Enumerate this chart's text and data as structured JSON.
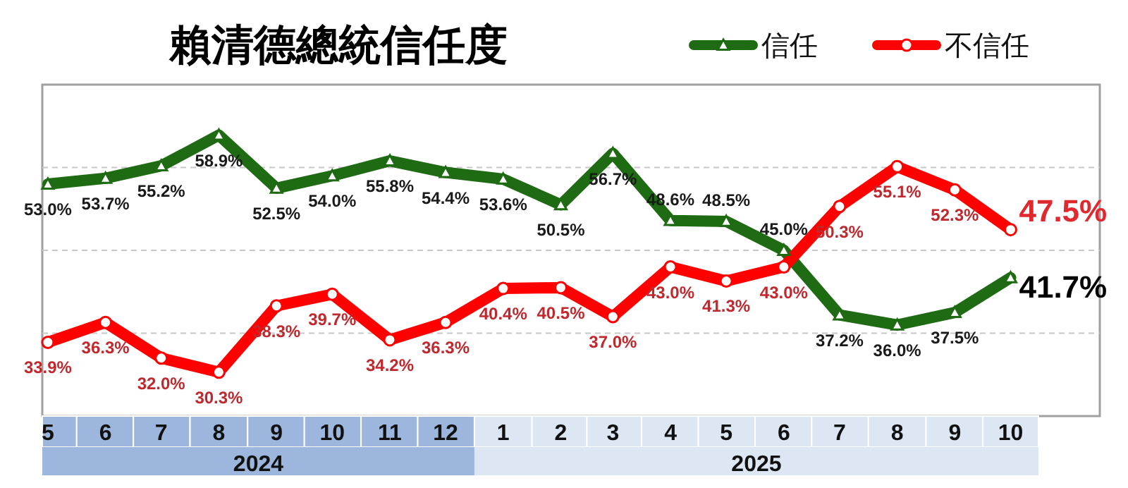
{
  "chart_data": {
    "type": "line",
    "title": "賴清德總統信任度",
    "x": [
      "2024-05",
      "2024-06",
      "2024-07",
      "2024-08",
      "2024-09",
      "2024-10",
      "2024-11",
      "2024-12",
      "2025-01",
      "2025-02",
      "2025-03",
      "2025-04",
      "2025-05",
      "2025-06",
      "2025-07",
      "2025-08",
      "2025-09",
      "2025-10"
    ],
    "xlim": [
      "2024-04-28",
      "2025-11-18"
    ],
    "annotations": [
      "2024",
      "2025"
    ],
    "xticks": [
      {
        "value": "2024-05",
        "label": "5"
      },
      {
        "value": "2024-06",
        "label": "6"
      },
      {
        "value": "2024-07",
        "label": "7"
      },
      {
        "value": "2024-08",
        "label": "8"
      },
      {
        "value": "2024-09",
        "label": "9"
      },
      {
        "value": "2024-10",
        "label": "10"
      },
      {
        "value": "2024-11",
        "label": "11"
      },
      {
        "value": "2024-12",
        "label": "12"
      },
      {
        "value": "2025-01",
        "label": "1"
      },
      {
        "value": "2025-02",
        "label": "2"
      },
      {
        "value": "2025-03",
        "label": "3"
      },
      {
        "value": "2025-04",
        "label": "4"
      },
      {
        "value": "2025-05",
        "label": "5"
      },
      {
        "value": "2025-06",
        "label": "6"
      },
      {
        "value": "2025-07",
        "label": "7"
      },
      {
        "value": "2025-08",
        "label": "8"
      },
      {
        "value": "2025-09",
        "label": "9"
      },
      {
        "value": "2025-10",
        "label": "10"
      }
    ],
    "ylim": [
      25,
      65
    ],
    "yticks": [
      {
        "value": 35,
        "label": null
      },
      {
        "value": 45,
        "label": null
      },
      {
        "value": 55,
        "label": null
      }
    ],
    "tick_labels": "x",
    "grid": "y",
    "legend": "top right",
    "line_style": "solid",
    "series": [
      {
        "name": "信任",
        "color": "#1f6b14",
        "marker": "triangle",
        "values": [
          53.0,
          53.7,
          55.2,
          58.9,
          52.5,
          54.0,
          55.8,
          54.4,
          53.6,
          50.5,
          56.7,
          48.6,
          48.5,
          45.0,
          37.2,
          36.0,
          37.5,
          41.7
        ],
        "value_labels": [
          "53.0%",
          "53.7%",
          "55.2%",
          "58.9%",
          "52.5%",
          "54.0%",
          "55.8%",
          "54.4%",
          "53.6%",
          "50.5%",
          "56.7%",
          "48.6%",
          "48.5%",
          "45.0%",
          "37.2%",
          "36.0%",
          "37.5%",
          "41.7%"
        ]
      },
      {
        "name": "不信任",
        "color": "#ff0000",
        "marker": "circle",
        "values": [
          33.9,
          36.3,
          32.0,
          30.3,
          38.3,
          39.7,
          34.2,
          36.3,
          40.4,
          40.5,
          37.0,
          43.0,
          41.3,
          43.0,
          50.3,
          55.1,
          52.3,
          47.5
        ],
        "value_labels": [
          "33.9%",
          "36.3%",
          "32.0%",
          "30.3%",
          "38.3%",
          "39.7%",
          "34.2%",
          "36.3%",
          "40.4%",
          "40.5%",
          "37.0%",
          "43.0%",
          "41.3%",
          "43.0%",
          "50.3%",
          "55.1%",
          "52.3%",
          "47.5%"
        ]
      }
    ]
  }
}
